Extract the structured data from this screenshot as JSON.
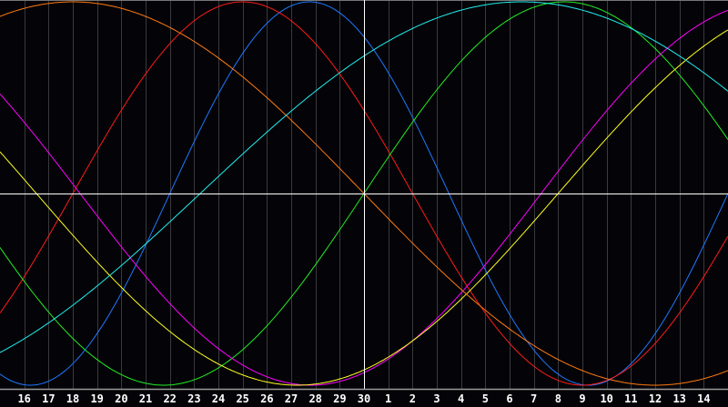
{
  "chart_data": {
    "type": "line",
    "x_tick_labels": [
      "16",
      "17",
      "18",
      "19",
      "20",
      "21",
      "22",
      "23",
      "24",
      "25",
      "26",
      "27",
      "28",
      "29",
      "30",
      "1",
      "2",
      "3",
      "4",
      "5",
      "6",
      "7",
      "8",
      "9",
      "10",
      "11",
      "12",
      "13",
      "14"
    ],
    "today_label": "30",
    "ylim": [
      -1,
      1
    ],
    "grid": true,
    "background": "#040408",
    "series": [
      {
        "color": "#1e78ff",
        "period": 23,
        "peak_offset_days": -2.25
      },
      {
        "color": "#ff1a1a",
        "period": 28,
        "peak_offset_days": -5
      },
      {
        "color": "#22ee22",
        "period": 33,
        "peak_offset_days": 8.25
      },
      {
        "color": "#ff00ff",
        "period": 38,
        "peak_offset_days": 16.8
      },
      {
        "color": "#ffff22",
        "period": 43,
        "peak_offset_days": 18.75
      },
      {
        "color": "#ff7a10",
        "period": 48,
        "peak_offset_days": -12
      },
      {
        "color": "#22eeee",
        "period": 53,
        "peak_offset_days": 6.5
      }
    ]
  }
}
